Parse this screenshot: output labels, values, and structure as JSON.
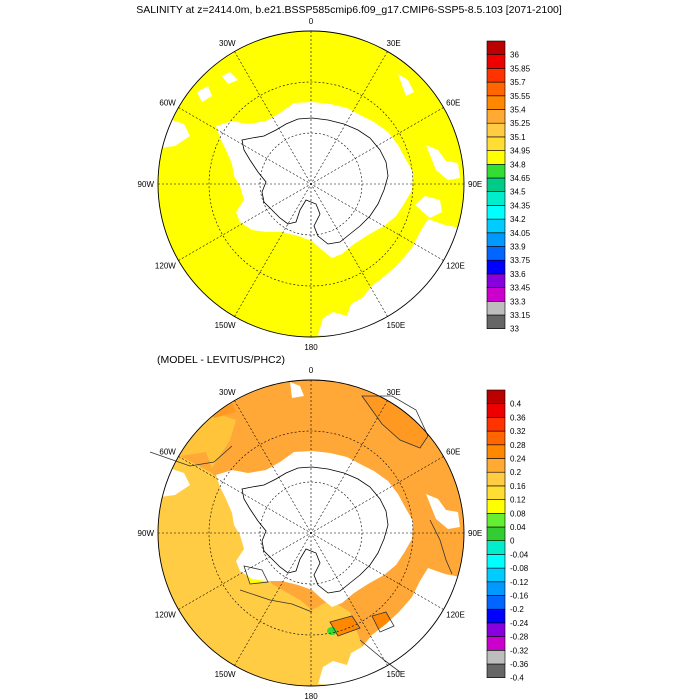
{
  "top_title": "SALINITY at z=2414.0m, b.e21.BSSP585cmip6.f09_g17.CMIP6-SSP5-8.5.103 [2071-2100]",
  "bottom_title": "(MODEL - LEVITUS/PHC2)",
  "longitude_labels": [
    "0",
    "30E",
    "60E",
    "90E",
    "120E",
    "150E",
    "180",
    "150W",
    "120W",
    "90W",
    "60W",
    "30W"
  ],
  "panels": [
    {
      "name": "salinity",
      "fill_color": "#ffff00",
      "colorbar": {
        "colors": [
          "#666666",
          "#bdbdbd",
          "#cc00cc",
          "#8800dd",
          "#0000ff",
          "#0066ff",
          "#0099ff",
          "#00ccff",
          "#00ffff",
          "#00eecc",
          "#00cc88",
          "#33dd33",
          "#ffff00",
          "#ffdd33",
          "#ffcc44",
          "#ffaa33",
          "#ff8800",
          "#ff6600",
          "#ff3300",
          "#ee0000",
          "#bb0000"
        ],
        "labels": [
          "33",
          "33.15",
          "33.3",
          "33.45",
          "33.6",
          "33.75",
          "33.9",
          "34.05",
          "34.2",
          "34.35",
          "34.5",
          "34.65",
          "34.8",
          "34.95",
          "35.1",
          "35.25",
          "35.4",
          "35.55",
          "35.7",
          "35.85",
          "36"
        ]
      }
    },
    {
      "name": "difference",
      "fill_color": "#ffa838",
      "colorbar": {
        "colors": [
          "#666666",
          "#bdbdbd",
          "#cc00cc",
          "#8800dd",
          "#0000ff",
          "#0066ff",
          "#0099ff",
          "#00ccff",
          "#00ffff",
          "#00eecc",
          "#33cc33",
          "#66ee33",
          "#ffff00",
          "#ffdd33",
          "#ffcc44",
          "#ffaa33",
          "#ff8800",
          "#ff6600",
          "#ff3300",
          "#ee0000",
          "#bb0000"
        ],
        "labels": [
          "-0.4",
          "-0.36",
          "-0.32",
          "-0.28",
          "-0.24",
          "-0.2",
          "-0.16",
          "-0.12",
          "-0.08",
          "-0.04",
          "0",
          "0.04",
          "0.08",
          "0.12",
          "0.16",
          "0.2",
          "0.24",
          "0.28",
          "0.32",
          "0.36",
          "0.4"
        ]
      }
    }
  ]
}
